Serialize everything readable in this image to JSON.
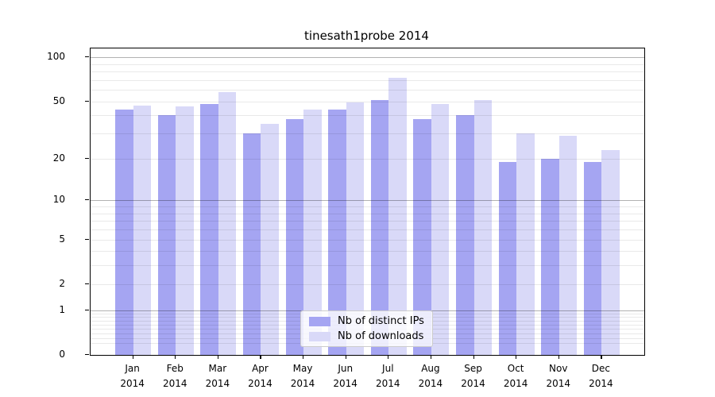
{
  "title": "tinesath1probe 2014",
  "colors": {
    "background": "#ffffff",
    "axis": "#000000",
    "major_grid": "#b0b0b0",
    "minor_grid": "#e8e8e8",
    "legend_border": "#cccccc",
    "series_ips": "#a5a5f2",
    "series_downloads": "#d9d9f8"
  },
  "chart_data": {
    "type": "bar",
    "title": "tinesath1probe 2014",
    "categories": [
      "Jan",
      "Feb",
      "Mar",
      "Apr",
      "May",
      "Jun",
      "Jul",
      "Aug",
      "Sep",
      "Oct",
      "Nov",
      "Dec"
    ],
    "category_year": "2014",
    "series": [
      {
        "name": "Nb of distinct IPs",
        "color": "#a5a5f2",
        "values": [
          44,
          40,
          48,
          30,
          38,
          44,
          51,
          38,
          40,
          19,
          20,
          19
        ]
      },
      {
        "name": "Nb of downloads",
        "color": "#d9d9f8",
        "values": [
          47,
          46,
          58,
          35,
          44,
          49,
          73,
          48,
          51,
          30,
          29,
          23
        ]
      }
    ],
    "xlabel": "",
    "ylabel": "",
    "yscale": "log1p",
    "ylim": [
      0,
      115
    ],
    "yticks": [
      0,
      1,
      2,
      5,
      10,
      20,
      50,
      100
    ],
    "major_gridlines": [
      1,
      10,
      100
    ],
    "minor_gridlines": [
      0.2,
      0.3,
      0.4,
      0.5,
      0.6,
      0.7,
      0.8,
      0.9,
      2,
      3,
      4,
      5,
      6,
      7,
      8,
      9,
      20,
      30,
      40,
      50,
      60,
      70,
      80,
      90
    ],
    "grid": true,
    "grid_over_bars": true,
    "legend_position": "lower center"
  }
}
